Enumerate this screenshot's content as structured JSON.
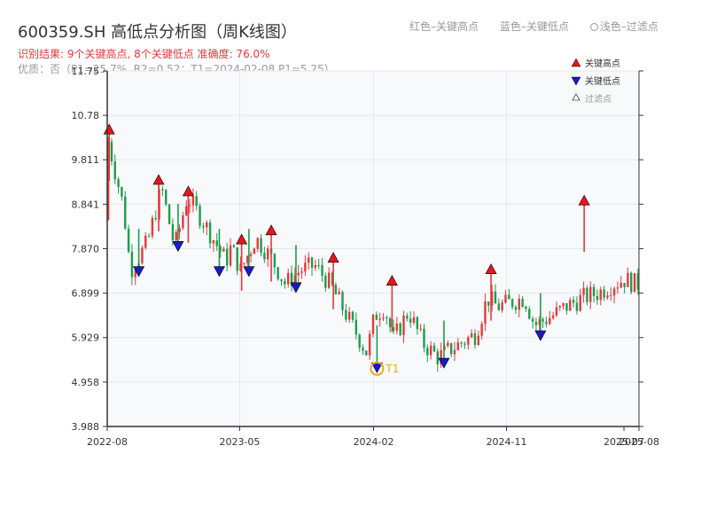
{
  "title": "600359.SH 高低点分析图（周K线图）",
  "subtitle": "识别结果: 9个关键高点, 8个关键低点  准确度: 76.0%",
  "quality": "优质：否（P1=25.7%, R2=0.52；T1=2024-02-08 P1=5.25）",
  "top_legend": {
    "red": "红色–关键高点",
    "blue": "蓝色–关键低点",
    "light": "浅色–过滤点"
  },
  "legend": {
    "high": "关键高点",
    "low": "关键低点",
    "filtered": "过滤点"
  },
  "t1_label": "T1",
  "colors": {
    "up": "#e4393c",
    "down": "#1e9c4c",
    "high_marker": "#e8151b",
    "low_marker": "#1a1acc",
    "t1": "#f5a623",
    "plot_bg": "#f7f9fb",
    "grid": "#e4e7ec"
  },
  "chart_data": {
    "type": "candlestick",
    "y_ticks": [
      "3.988",
      "4.958",
      "5.929",
      "6.899",
      "7.870",
      "8.841",
      "9.811",
      "10.78",
      "11.75"
    ],
    "ylim": [
      3.988,
      11.75
    ],
    "x_ticks": [
      {
        "label": "2022-08",
        "date": "2022-08"
      },
      {
        "label": "2023-05",
        "date": "2023-05"
      },
      {
        "label": "2024-02",
        "date": "2024-02"
      },
      {
        "label": "2024-11",
        "date": "2024-11"
      },
      {
        "label": "2025-07",
        "date": "2025-07"
      },
      {
        "label": "2025-08",
        "date": "2025-08"
      }
    ],
    "xlim": [
      "2022-08",
      "2025-08"
    ],
    "grid": true,
    "anchors": [
      [
        "2022-08",
        8.5
      ],
      [
        "2022-08-08",
        10.3
      ],
      [
        "2022-09-10",
        8.8
      ],
      [
        "2022-09-25",
        7.4
      ],
      [
        "2022-10-30",
        8.0
      ],
      [
        "2022-11-28",
        9.2
      ],
      [
        "2022-12-25",
        7.9
      ],
      [
        "2023-01-20",
        9.0
      ],
      [
        "2023-02-20",
        8.5
      ],
      [
        "2023-04-10",
        7.6
      ],
      [
        "2023-04-20",
        7.9
      ],
      [
        "2023-05-10",
        7.4
      ],
      [
        "2023-06-10",
        8.1
      ],
      [
        "2023-07-10",
        7.7
      ],
      [
        "2023-08-10",
        7.1
      ],
      [
        "2023-09-10",
        7.4
      ],
      [
        "2023-10-10",
        7.5
      ],
      [
        "2023-11-10",
        7.1
      ],
      [
        "2023-12-10",
        6.5
      ],
      [
        "2024-01-25",
        5.6
      ],
      [
        "2024-02-10",
        6.4
      ],
      [
        "2024-03-01",
        6.6
      ],
      [
        "2024-03-20",
        5.9
      ],
      [
        "2024-04-20",
        6.5
      ],
      [
        "2024-05-20",
        5.8
      ],
      [
        "2024-06-20",
        5.5
      ],
      [
        "2024-07-20",
        5.7
      ],
      [
        "2024-09-05",
        6.0
      ],
      [
        "2024-09-30",
        6.8
      ],
      [
        "2024-10-20",
        6.6
      ],
      [
        "2024-12-15",
        6.8
      ],
      [
        "2025-01-05",
        6.2
      ],
      [
        "2025-02-10",
        6.4
      ],
      [
        "2025-03-10",
        6.6
      ],
      [
        "2025-04-15",
        6.8
      ],
      [
        "2025-05-15",
        6.9
      ],
      [
        "2025-06-15",
        7.1
      ],
      [
        "2025-07-10",
        7.2
      ],
      [
        "2025-08",
        7.1
      ]
    ],
    "key_highs": [
      {
        "date": "2022-08-05",
        "price": 10.45
      },
      {
        "date": "2022-11-15",
        "price": 9.35
      },
      {
        "date": "2023-01-15",
        "price": 9.1
      },
      {
        "date": "2023-05-05",
        "price": 8.05
      },
      {
        "date": "2023-07-05",
        "price": 8.25
      },
      {
        "date": "2023-11-10",
        "price": 7.65
      },
      {
        "date": "2024-03-10",
        "price": 7.15
      },
      {
        "date": "2024-09-30",
        "price": 7.4
      },
      {
        "date": "2025-04-10",
        "price": 8.9
      }
    ],
    "key_lows": [
      {
        "date": "2022-10-05",
        "price": 7.4
      },
      {
        "date": "2022-12-25",
        "price": 7.95
      },
      {
        "date": "2023-03-20",
        "price": 7.4
      },
      {
        "date": "2023-05-20",
        "price": 7.4
      },
      {
        "date": "2023-08-25",
        "price": 7.05
      },
      {
        "date": "2024-02-08",
        "price": 5.3
      },
      {
        "date": "2024-06-25",
        "price": 5.4
      },
      {
        "date": "2025-01-10",
        "price": 6.0
      }
    ],
    "t1": {
      "date": "2024-02-08",
      "price": 5.25
    }
  }
}
